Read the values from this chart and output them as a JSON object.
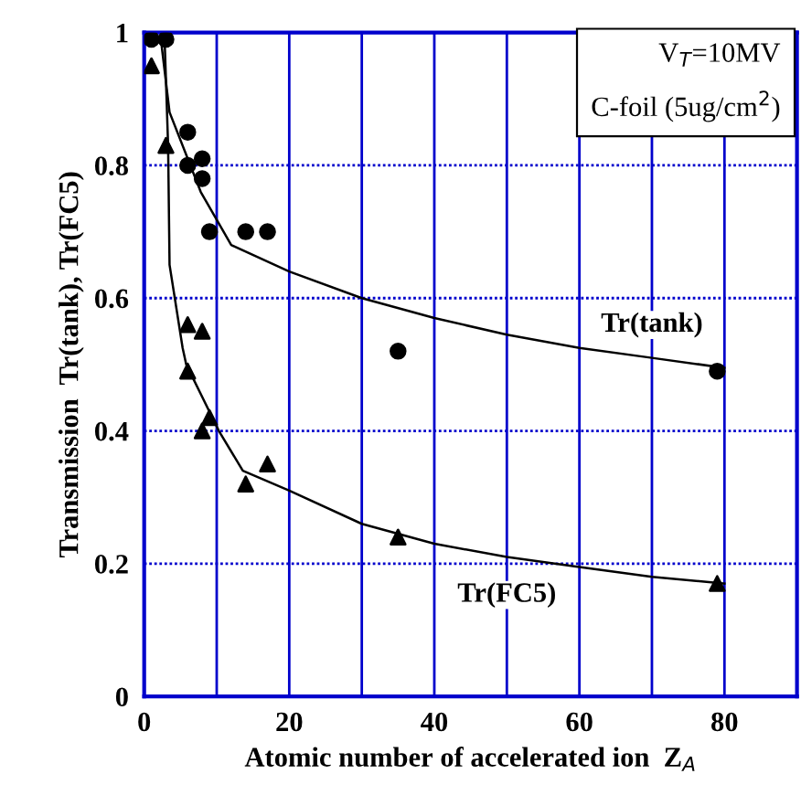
{
  "chart_data": {
    "type": "scatter",
    "xlabel": "Atomic number of accelerated ion  Z$_{A}$",
    "ylabel": "Transmission  Tr(tank), Tr(FC5)",
    "xlim": [
      0,
      90
    ],
    "ylim": [
      0,
      1
    ],
    "xticks": [
      0,
      {
        "value": 10,
        "label": null
      },
      20,
      {
        "value": 30,
        "label": null
      },
      40,
      {
        "value": 50,
        "label": null
      },
      60,
      {
        "value": 70,
        "label": null
      },
      80
    ],
    "yticks": [
      0,
      0.2,
      0.4,
      0.6,
      0.8,
      1
    ],
    "grid": true,
    "legend": false,
    "series": [
      {
        "marker": "circle",
        "color": "#000000",
        "x": [
          1,
          3,
          6,
          6,
          8,
          8,
          9,
          14,
          17,
          35,
          79
        ],
        "values": [
          0.99,
          0.99,
          0.85,
          0.8,
          0.81,
          0.78,
          0.7,
          0.7,
          0.7,
          0.52,
          0.49
        ]
      },
      {
        "marker": "triangle",
        "color": "#000000",
        "x": [
          1,
          3,
          6,
          8,
          6,
          8,
          9,
          14,
          17,
          35,
          79
        ],
        "values": [
          0.95,
          0.83,
          0.56,
          0.55,
          0.49,
          0.4,
          0.42,
          0.32,
          0.35,
          0.24,
          0.17
        ]
      },
      {
        "type": "line",
        "name": "Tr(tank)",
        "color": "#000000",
        "x": [
          2.3,
          3.5,
          7.8,
          12,
          20,
          30,
          40,
          50,
          60,
          70,
          80
        ],
        "values": [
          0.99,
          0.88,
          0.76,
          0.68,
          0.64,
          0.6,
          0.57,
          0.545,
          0.525,
          0.51,
          0.495
        ]
      },
      {
        "type": "line",
        "name": "Tr(FC5)",
        "color": "#000000",
        "x": [
          2.8,
          3.3,
          3.5,
          5.3,
          5.8,
          10.3,
          13.6,
          20,
          30,
          40,
          50,
          60,
          70,
          80
        ],
        "values": [
          0.995,
          0.83,
          0.65,
          0.525,
          0.5,
          0.4,
          0.34,
          0.31,
          0.26,
          0.23,
          0.21,
          0.195,
          0.18,
          0.17
        ]
      }
    ],
    "annotations": [
      "V$_{T}$=10MV",
      "C-foil (5ug/cm$^{2}$)"
    ]
  }
}
